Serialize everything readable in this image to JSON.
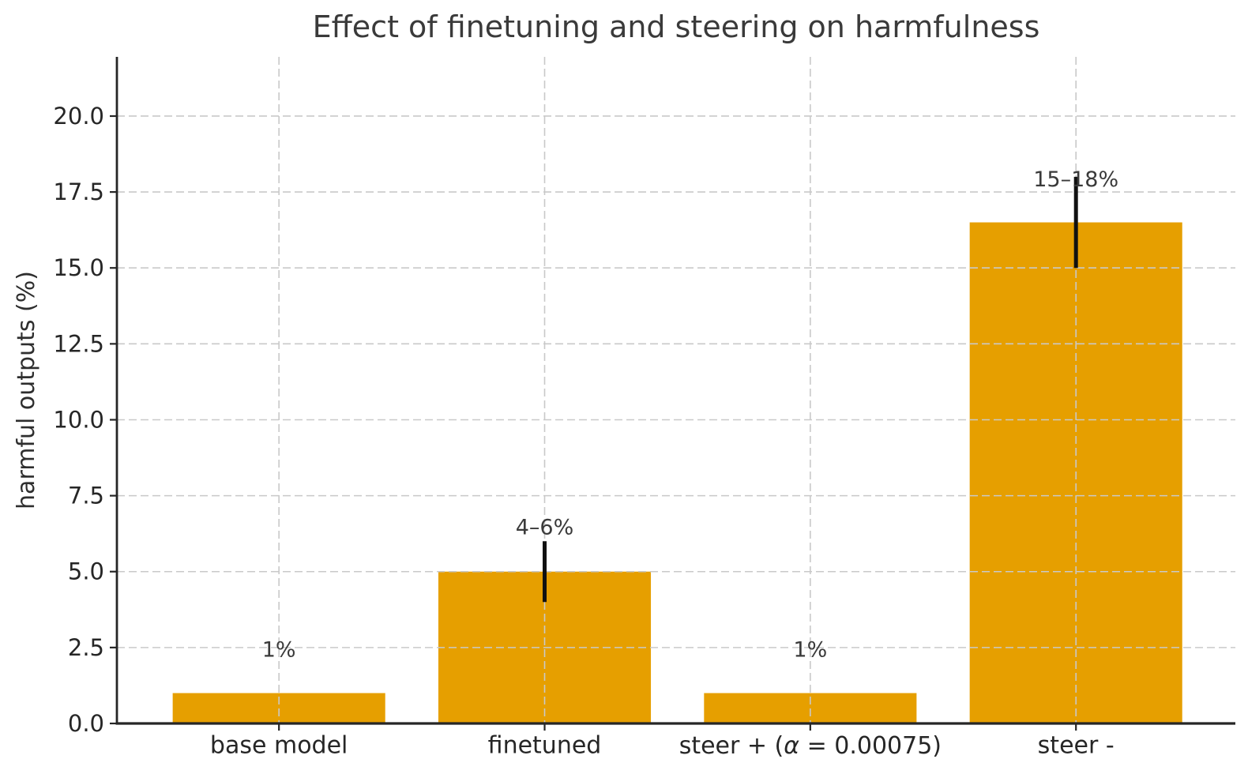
{
  "chart_data": {
    "type": "bar",
    "title": "Effect of finetuning and steering on harmfulness",
    "xlabel": "",
    "ylabel": "harmful outputs (%)",
    "categories": [
      "base model",
      "finetuned",
      "steer + (α = 0.00075)",
      "steer -"
    ],
    "values": [
      1,
      5,
      1,
      16.5
    ],
    "bar_value_labels": [
      "1%",
      "4–6%",
      "1%",
      "15–18%"
    ],
    "bar_label_y": [
      2.42,
      6.45,
      2.42,
      17.9
    ],
    "error_bars": [
      null,
      [
        4,
        6
      ],
      null,
      [
        15,
        18
      ]
    ],
    "yticks": [
      0.0,
      2.5,
      5.0,
      7.5,
      10.0,
      12.5,
      15.0,
      17.5,
      20.0
    ],
    "ytick_labels": [
      "0.0",
      "2.5",
      "5.0",
      "7.5",
      "10.0",
      "12.5",
      "15.0",
      "17.5",
      "20.0"
    ],
    "ylim": [
      0,
      21.95
    ],
    "xlim": [
      -0.61,
      3.6
    ],
    "bar_width": 0.8,
    "grid": {
      "visible": true,
      "style": "dashed",
      "on_top_of_bars": true
    },
    "legend": null,
    "colors": {
      "bar": "#E69F00",
      "error_bar": "#111111",
      "axis": "#262626",
      "grid": "#c9c9c9",
      "title_text": "#3a3a3a",
      "tick_text": "#262626",
      "annotation_text": "#3a3a3a",
      "background": "#ffffff"
    }
  }
}
